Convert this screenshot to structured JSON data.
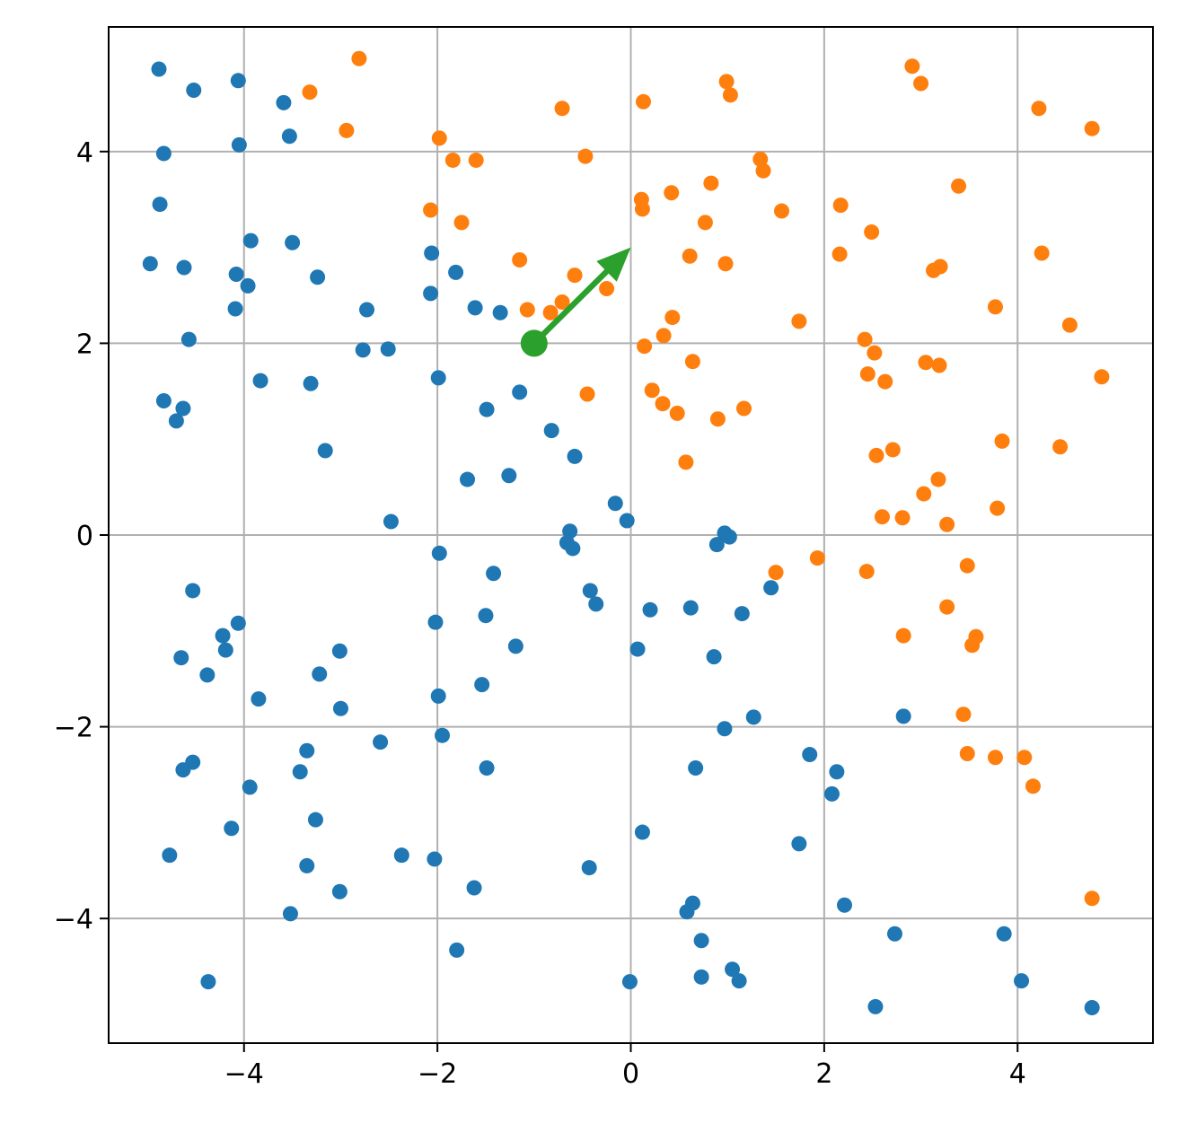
{
  "chart_data": {
    "type": "scatter",
    "title": "",
    "xlabel": "",
    "ylabel": "",
    "xlim": [
      -5.4,
      5.4
    ],
    "ylim": [
      -5.3,
      5.3
    ],
    "grid": true,
    "legend": "none",
    "x_ticks": [
      {
        "value": -4,
        "label": "−4"
      },
      {
        "value": -2,
        "label": "−2"
      },
      {
        "value": 0,
        "label": "0"
      },
      {
        "value": 2,
        "label": "2"
      },
      {
        "value": 4,
        "label": "4"
      }
    ],
    "y_ticks": [
      {
        "value": -4,
        "label": "−4"
      },
      {
        "value": -2,
        "label": "−2"
      },
      {
        "value": 0,
        "label": "0"
      },
      {
        "value": 2,
        "label": "2"
      },
      {
        "value": 4,
        "label": "4"
      }
    ],
    "series": [
      {
        "color": "#1f77b4",
        "points": [
          [
            -4.88,
            4.86
          ],
          [
            -4.52,
            4.64
          ],
          [
            -4.06,
            4.74
          ],
          [
            -3.59,
            4.51
          ],
          [
            -3.53,
            4.16
          ],
          [
            -4.05,
            4.07
          ],
          [
            -4.83,
            3.98
          ],
          [
            -4.87,
            3.45
          ],
          [
            -3.93,
            3.07
          ],
          [
            -3.5,
            3.05
          ],
          [
            -4.97,
            2.83
          ],
          [
            -4.62,
            2.79
          ],
          [
            -4.08,
            2.72
          ],
          [
            -3.96,
            2.6
          ],
          [
            -3.24,
            2.69
          ],
          [
            -4.09,
            2.36
          ],
          [
            -4.57,
            2.04
          ],
          [
            -2.06,
            2.94
          ],
          [
            -2.07,
            2.52
          ],
          [
            -1.81,
            2.74
          ],
          [
            -1.61,
            2.37
          ],
          [
            -1.35,
            2.32
          ],
          [
            -2.73,
            2.35
          ],
          [
            -2.77,
            1.93
          ],
          [
            -2.51,
            1.94
          ],
          [
            -3.83,
            1.61
          ],
          [
            -3.31,
            1.58
          ],
          [
            -1.99,
            1.64
          ],
          [
            -1.15,
            1.49
          ],
          [
            -1.49,
            1.31
          ],
          [
            -4.83,
            1.4
          ],
          [
            -4.63,
            1.32
          ],
          [
            -4.7,
            1.19
          ],
          [
            -3.16,
            0.88
          ],
          [
            -0.82,
            1.09
          ],
          [
            -0.58,
            0.82
          ],
          [
            -1.69,
            0.58
          ],
          [
            -1.26,
            0.62
          ],
          [
            -2.48,
            0.14
          ],
          [
            -0.16,
            0.33
          ],
          [
            -0.04,
            0.15
          ],
          [
            -0.63,
            0.04
          ],
          [
            -0.66,
            -0.08
          ],
          [
            -0.6,
            -0.14
          ],
          [
            0.97,
            0.02
          ],
          [
            1.02,
            -0.02
          ],
          [
            0.89,
            -0.1
          ],
          [
            -1.98,
            -0.19
          ],
          [
            -1.42,
            -0.4
          ],
          [
            -4.53,
            -0.58
          ],
          [
            -0.42,
            -0.58
          ],
          [
            -0.36,
            -0.72
          ],
          [
            -2.02,
            -0.91
          ],
          [
            -1.5,
            -0.84
          ],
          [
            0.2,
            -0.78
          ],
          [
            0.62,
            -0.76
          ],
          [
            1.15,
            -0.82
          ],
          [
            1.45,
            -0.55
          ],
          [
            -4.06,
            -0.92
          ],
          [
            -4.22,
            -1.05
          ],
          [
            -4.19,
            -1.2
          ],
          [
            -4.65,
            -1.28
          ],
          [
            -3.01,
            -1.21
          ],
          [
            -1.19,
            -1.16
          ],
          [
            0.07,
            -1.19
          ],
          [
            0.86,
            -1.27
          ],
          [
            -4.38,
            -1.46
          ],
          [
            -3.22,
            -1.45
          ],
          [
            -3.85,
            -1.71
          ],
          [
            -1.99,
            -1.68
          ],
          [
            -1.54,
            -1.56
          ],
          [
            -3.0,
            -1.81
          ],
          [
            -1.95,
            -2.09
          ],
          [
            -2.59,
            -2.16
          ],
          [
            0.97,
            -2.02
          ],
          [
            1.27,
            -1.9
          ],
          [
            2.82,
            -1.89
          ],
          [
            -3.35,
            -2.25
          ],
          [
            -3.42,
            -2.47
          ],
          [
            -4.63,
            -2.45
          ],
          [
            -4.53,
            -2.37
          ],
          [
            -1.49,
            -2.43
          ],
          [
            0.67,
            -2.43
          ],
          [
            1.85,
            -2.29
          ],
          [
            2.13,
            -2.47
          ],
          [
            -3.94,
            -2.63
          ],
          [
            2.08,
            -2.7
          ],
          [
            -3.26,
            -2.97
          ],
          [
            -4.13,
            -3.06
          ],
          [
            0.12,
            -3.1
          ],
          [
            1.74,
            -3.22
          ],
          [
            -4.77,
            -3.34
          ],
          [
            -2.37,
            -3.34
          ],
          [
            -2.03,
            -3.38
          ],
          [
            -3.35,
            -3.45
          ],
          [
            -0.43,
            -3.47
          ],
          [
            -1.62,
            -3.68
          ],
          [
            -3.01,
            -3.72
          ],
          [
            -3.52,
            -3.95
          ],
          [
            0.64,
            -3.84
          ],
          [
            0.58,
            -3.93
          ],
          [
            2.21,
            -3.86
          ],
          [
            0.73,
            -4.23
          ],
          [
            -1.8,
            -4.33
          ],
          [
            2.73,
            -4.16
          ],
          [
            3.86,
            -4.16
          ],
          [
            -4.37,
            -4.66
          ],
          [
            -0.01,
            -4.66
          ],
          [
            0.73,
            -4.61
          ],
          [
            1.05,
            -4.53
          ],
          [
            1.12,
            -4.65
          ],
          [
            2.53,
            -4.92
          ],
          [
            4.04,
            -4.65
          ],
          [
            4.77,
            -4.93
          ]
        ]
      },
      {
        "color": "#ff7f0e",
        "points": [
          [
            -2.81,
            4.97
          ],
          [
            -3.32,
            4.62
          ],
          [
            -2.94,
            4.22
          ],
          [
            -1.98,
            4.14
          ],
          [
            -1.84,
            3.91
          ],
          [
            -1.6,
            3.91
          ],
          [
            -0.71,
            4.45
          ],
          [
            -0.47,
            3.95
          ],
          [
            0.13,
            4.52
          ],
          [
            0.99,
            4.73
          ],
          [
            1.03,
            4.59
          ],
          [
            2.91,
            4.89
          ],
          [
            3.0,
            4.71
          ],
          [
            4.22,
            4.45
          ],
          [
            4.77,
            4.24
          ],
          [
            -2.07,
            3.39
          ],
          [
            -1.75,
            3.26
          ],
          [
            -1.15,
            2.87
          ],
          [
            0.11,
            3.5
          ],
          [
            0.12,
            3.4
          ],
          [
            0.42,
            3.57
          ],
          [
            0.83,
            3.67
          ],
          [
            1.34,
            3.92
          ],
          [
            1.37,
            3.8
          ],
          [
            1.56,
            3.38
          ],
          [
            2.17,
            3.44
          ],
          [
            3.39,
            3.64
          ],
          [
            0.77,
            3.26
          ],
          [
            0.61,
            2.91
          ],
          [
            0.98,
            2.83
          ],
          [
            2.16,
            2.93
          ],
          [
            2.49,
            3.16
          ],
          [
            3.13,
            2.76
          ],
          [
            3.2,
            2.8
          ],
          [
            4.25,
            2.94
          ],
          [
            -0.58,
            2.71
          ],
          [
            -0.25,
            2.57
          ],
          [
            -0.71,
            2.43
          ],
          [
            -0.83,
            2.32
          ],
          [
            -1.07,
            2.35
          ],
          [
            0.43,
            2.27
          ],
          [
            0.34,
            2.08
          ],
          [
            0.14,
            1.97
          ],
          [
            1.74,
            2.23
          ],
          [
            2.42,
            2.04
          ],
          [
            2.52,
            1.9
          ],
          [
            3.77,
            2.38
          ],
          [
            4.54,
            2.19
          ],
          [
            0.64,
            1.81
          ],
          [
            3.05,
            1.8
          ],
          [
            3.19,
            1.77
          ],
          [
            2.45,
            1.68
          ],
          [
            2.63,
            1.6
          ],
          [
            4.87,
            1.65
          ],
          [
            -0.45,
            1.47
          ],
          [
            0.22,
            1.51
          ],
          [
            0.33,
            1.37
          ],
          [
            0.48,
            1.27
          ],
          [
            0.9,
            1.21
          ],
          [
            1.17,
            1.32
          ],
          [
            3.84,
            0.98
          ],
          [
            4.44,
            0.92
          ],
          [
            2.54,
            0.83
          ],
          [
            2.71,
            0.89
          ],
          [
            0.57,
            0.76
          ],
          [
            3.18,
            0.58
          ],
          [
            3.03,
            0.43
          ],
          [
            3.79,
            0.28
          ],
          [
            2.6,
            0.19
          ],
          [
            2.81,
            0.18
          ],
          [
            3.27,
            0.11
          ],
          [
            1.5,
            -0.39
          ],
          [
            1.93,
            -0.24
          ],
          [
            2.44,
            -0.38
          ],
          [
            3.48,
            -0.32
          ],
          [
            3.27,
            -0.75
          ],
          [
            2.82,
            -1.05
          ],
          [
            3.57,
            -1.06
          ],
          [
            3.53,
            -1.15
          ],
          [
            3.44,
            -1.87
          ],
          [
            3.48,
            -2.28
          ],
          [
            3.77,
            -2.32
          ],
          [
            4.07,
            -2.32
          ],
          [
            4.16,
            -2.62
          ],
          [
            4.77,
            -3.79
          ]
        ]
      }
    ],
    "highlight_point": {
      "color": "#2ca02c",
      "x": -1.0,
      "y": 2.0
    },
    "arrow": {
      "color": "#2ca02c",
      "from": [
        -1.0,
        2.0
      ],
      "to": [
        0.0,
        3.0
      ]
    }
  }
}
